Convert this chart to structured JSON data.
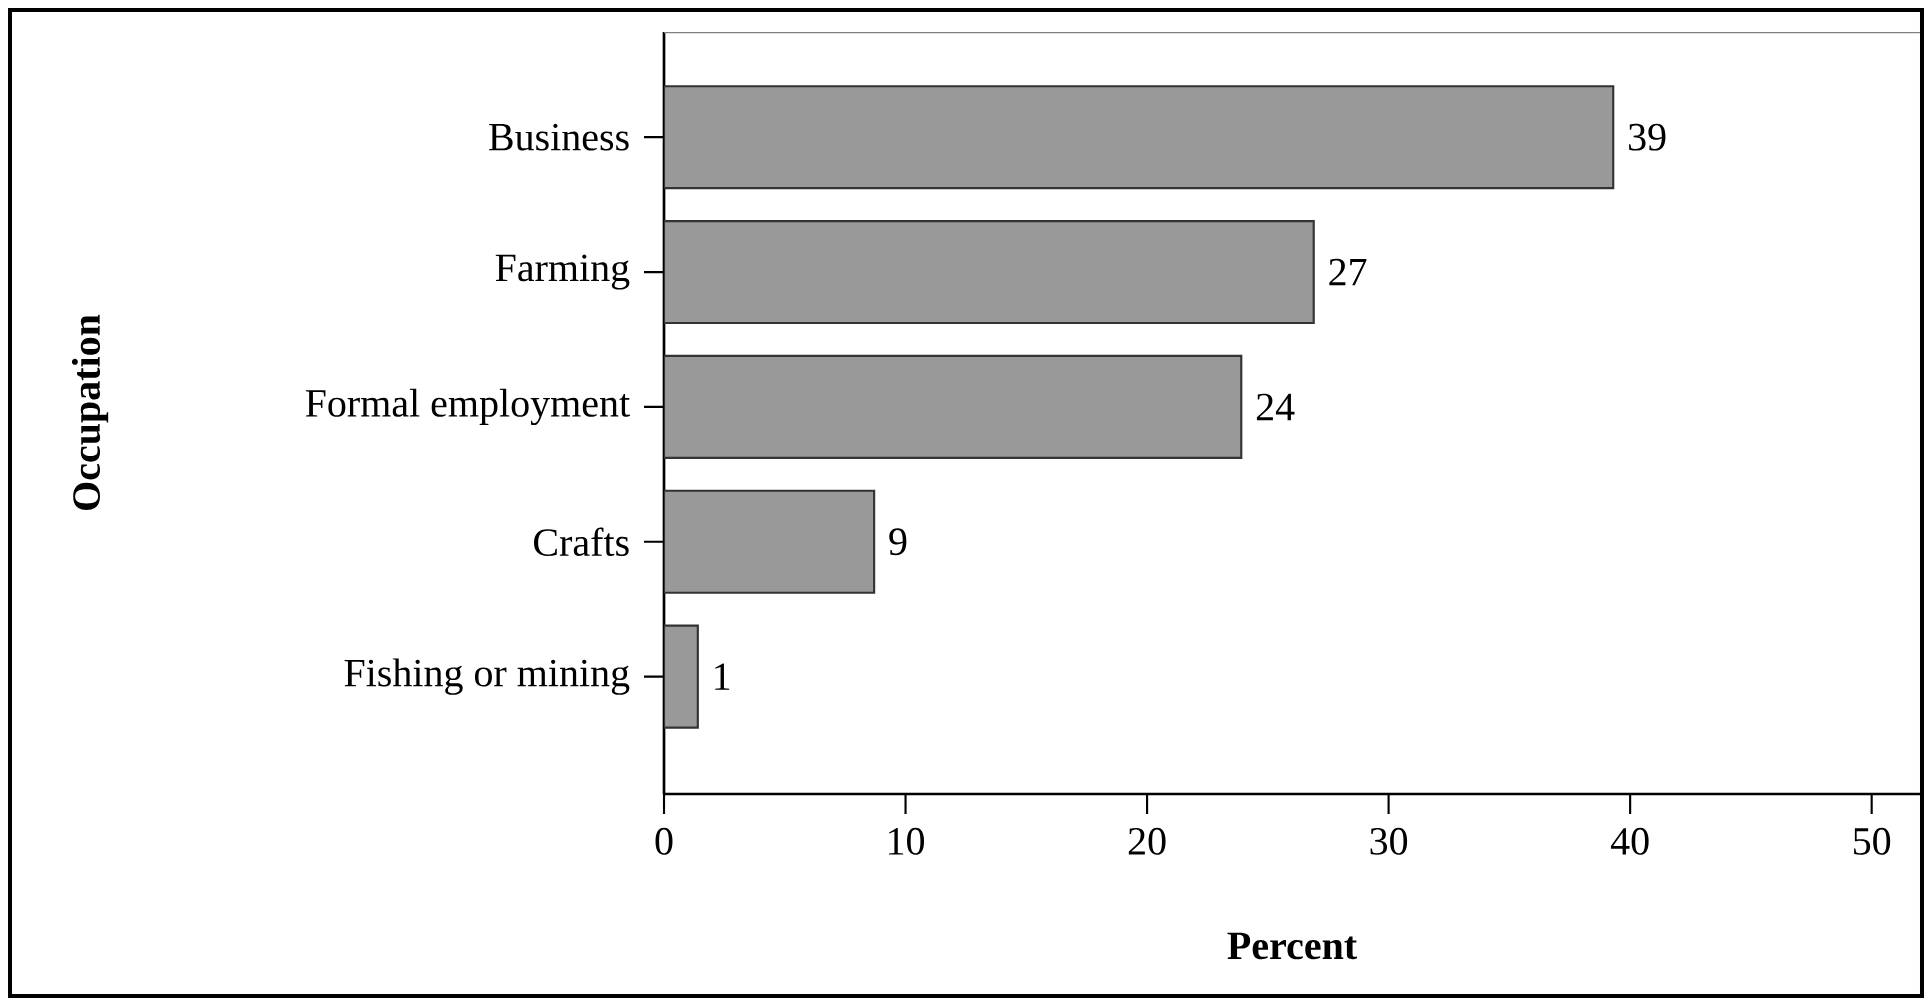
{
  "chart_data": {
    "type": "bar",
    "orientation": "horizontal",
    "xlabel": "Percent",
    "ylabel": "Occupation",
    "categories": [
      "Business",
      "Farming",
      "Formal employment",
      "Crafts",
      "Fishing or mining"
    ],
    "values": [
      39.3,
      26.9,
      23.9,
      8.7,
      1.4
    ],
    "value_labels": [
      "39",
      "27",
      "24",
      "9",
      "1"
    ],
    "color": "#999999",
    "xlim": [
      0,
      52
    ],
    "xticks": [
      0,
      10,
      20,
      30,
      40,
      50
    ],
    "grid": false
  }
}
